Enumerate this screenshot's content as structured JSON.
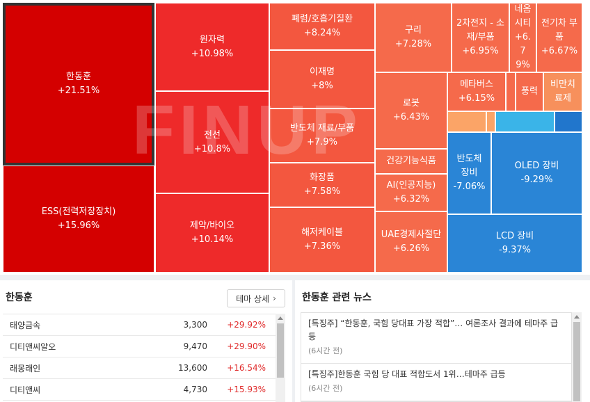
{
  "treemap": {
    "watermark": "FINUP",
    "tiles": {
      "hanDongHoon": {
        "name": "한동훈",
        "pct": "+21.51%"
      },
      "ess": {
        "name": "ESS(전력저장장치)",
        "pct": "+15.96%"
      },
      "nuclear": {
        "name": "원자력",
        "pct": "+10.98%"
      },
      "wire": {
        "name": "전선",
        "pct": "+10.8%"
      },
      "pharma": {
        "name": "제약/바이오",
        "pct": "+10.14%"
      },
      "lung": {
        "name": "폐렴/호흡기질환",
        "pct": "+8.24%"
      },
      "lee": {
        "name": "이재명",
        "pct": "+8%"
      },
      "semiMat": {
        "name": "반도체 재료/부품",
        "pct": "+7.9%"
      },
      "cosmetics": {
        "name": "화장품",
        "pct": "+7.58%"
      },
      "hedgecable": {
        "name": "해저케이블",
        "pct": "+7.36%"
      },
      "copper": {
        "name": "구리",
        "pct": "+7.28%"
      },
      "battery": {
        "name": "2차전지 - 소재/부품",
        "pct": "+6.95%"
      },
      "neom": {
        "name": "네옴 시티",
        "pct": "+6.79%"
      },
      "ev": {
        "name": "전기차 부품",
        "pct": "+6.67%"
      },
      "robot": {
        "name": "로봇",
        "pct": "+6.43%"
      },
      "metaverse": {
        "name": "메타버스",
        "pct": "+6.15%"
      },
      "wind": {
        "name": "풍력"
      },
      "fat": {
        "name": "비만치료제"
      },
      "health": {
        "name": "건강기능식품"
      },
      "ai": {
        "name": "AI(인공지능)",
        "pct": "+6.32%"
      },
      "uae": {
        "name": "UAE경제사절단",
        "pct": "+6.26%"
      },
      "semiEq": {
        "name": "반도체 장비",
        "pct": "-7.06%"
      },
      "oled": {
        "name": "OLED 장비",
        "pct": "-9.29%"
      },
      "lcd": {
        "name": "LCD 장비",
        "pct": "-9.37%"
      }
    }
  },
  "left_panel": {
    "title": "한동훈",
    "detail_button": "테마 상세",
    "stocks": [
      {
        "name": "태양금속",
        "price": "3,300",
        "change": "+29.92%"
      },
      {
        "name": "디티앤씨알오",
        "price": "9,470",
        "change": "+29.90%"
      },
      {
        "name": "래몽래인",
        "price": "13,600",
        "change": "+16.54%"
      },
      {
        "name": "디티앤씨",
        "price": "4,730",
        "change": "+15.93%"
      }
    ]
  },
  "right_panel": {
    "title": "한동훈 관련 뉴스",
    "news": [
      {
        "title": "[특징주] “한동훈, 국힘 당대표 가장 적합”… 여론조사 결과에 테마주 급등",
        "time": "(6시간 전)"
      },
      {
        "title": "[특징주]한동훈 국힘 당 대표 적합도서 1위…테마주 급등",
        "time": "(6시간 전)"
      }
    ]
  },
  "colors": {
    "up": "#e02b2b",
    "down": "#2176cc",
    "strong_up": "#d40000"
  }
}
